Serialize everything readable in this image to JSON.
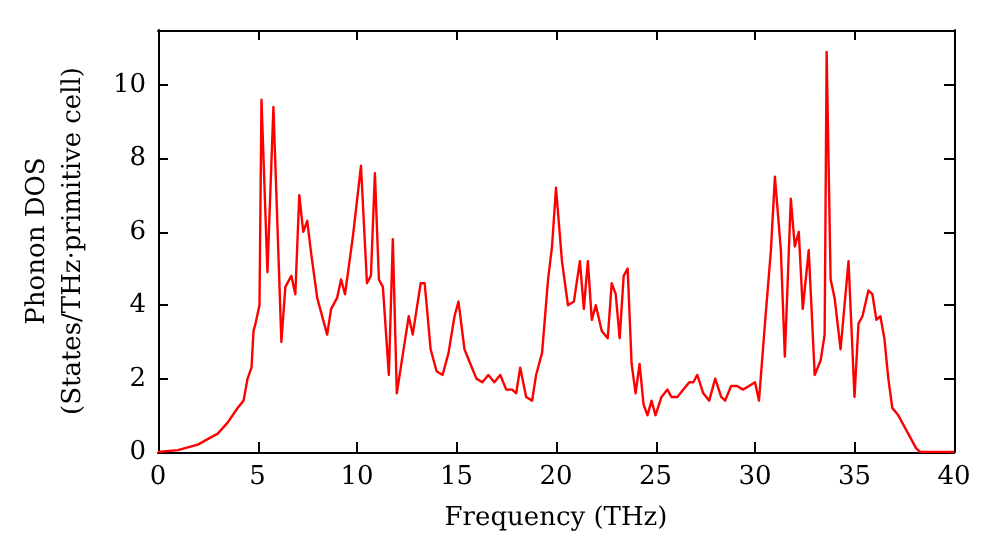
{
  "chart_data": {
    "type": "line",
    "xlabel": "Frequency (THz)",
    "ylabel": "Phonon DOS\n(States/THz·primitive cell)",
    "xlim": [
      0,
      40
    ],
    "xticks": [
      0,
      5,
      10,
      15,
      20,
      25,
      30,
      35,
      40
    ],
    "ylim": [
      0,
      11.5
    ],
    "yticks": [
      0,
      2,
      4,
      6,
      8,
      10
    ],
    "grid": false,
    "marker": "none",
    "line_style": "solid",
    "series": [
      {
        "color": "#ff0000",
        "x": [
          0,
          1,
          2,
          3,
          3.5,
          4,
          4.3,
          4.5,
          4.7,
          4.8,
          4.9,
          5.1,
          5.2,
          5.5,
          5.8,
          6.2,
          6.4,
          6.7,
          6.9,
          7.1,
          7.3,
          7.5,
          7.7,
          8.0,
          8.3,
          8.5,
          8.7,
          9.0,
          9.2,
          9.4,
          9.8,
          10.2,
          10.5,
          10.7,
          10.9,
          11.1,
          11.3,
          11.6,
          11.8,
          12.0,
          12.4,
          12.6,
          12.8,
          13.2,
          13.4,
          13.7,
          14.0,
          14.3,
          14.6,
          14.9,
          15.1,
          15.4,
          15.7,
          16.0,
          16.3,
          16.6,
          16.9,
          17.2,
          17.5,
          17.8,
          18.0,
          18.2,
          18.5,
          18.8,
          19.0,
          19.3,
          19.6,
          19.8,
          20.0,
          20.3,
          20.6,
          20.9,
          21.2,
          21.4,
          21.6,
          21.8,
          22.0,
          22.3,
          22.6,
          22.8,
          23.0,
          23.2,
          23.4,
          23.6,
          23.8,
          24.0,
          24.2,
          24.4,
          24.6,
          24.8,
          25.0,
          25.3,
          25.6,
          25.8,
          26.1,
          26.4,
          26.7,
          26.9,
          27.1,
          27.4,
          27.7,
          28.0,
          28.3,
          28.5,
          28.8,
          29.1,
          29.4,
          29.7,
          30.0,
          30.2,
          30.5,
          30.8,
          31.0,
          31.3,
          31.5,
          31.8,
          32.0,
          32.2,
          32.4,
          32.7,
          33.0,
          33.3,
          33.5,
          33.6,
          33.8,
          34.0,
          34.3,
          34.7,
          35.0,
          35.2,
          35.4,
          35.7,
          35.9,
          36.1,
          36.3,
          36.5,
          36.7,
          36.9,
          37.2,
          37.5,
          37.8,
          38.1,
          38.3,
          40
        ],
        "values": [
          0,
          0.05,
          0.2,
          0.5,
          0.8,
          1.2,
          1.4,
          2.0,
          2.3,
          3.3,
          3.5,
          4.0,
          9.6,
          4.9,
          9.4,
          3.0,
          4.5,
          4.8,
          4.3,
          7.0,
          6.0,
          6.3,
          5.4,
          4.2,
          3.6,
          3.2,
          3.9,
          4.2,
          4.7,
          4.3,
          5.9,
          7.8,
          4.6,
          4.8,
          7.6,
          4.7,
          4.5,
          2.1,
          5.8,
          1.6,
          3.0,
          3.7,
          3.2,
          4.6,
          4.6,
          2.8,
          2.2,
          2.1,
          2.7,
          3.7,
          4.1,
          2.8,
          2.4,
          2.0,
          1.9,
          2.1,
          1.9,
          2.1,
          1.7,
          1.7,
          1.6,
          2.3,
          1.5,
          1.4,
          2.1,
          2.7,
          4.7,
          5.6,
          7.2,
          5.2,
          4.0,
          4.1,
          5.2,
          3.9,
          5.2,
          3.6,
          4.0,
          3.3,
          3.1,
          4.6,
          4.3,
          3.1,
          4.8,
          5.0,
          2.4,
          1.6,
          2.4,
          1.3,
          1.0,
          1.4,
          1.0,
          1.5,
          1.7,
          1.5,
          1.5,
          1.7,
          1.9,
          1.9,
          2.1,
          1.6,
          1.4,
          2.0,
          1.5,
          1.4,
          1.8,
          1.8,
          1.7,
          1.8,
          1.9,
          1.4,
          3.5,
          5.5,
          7.5,
          5.5,
          2.6,
          6.9,
          5.6,
          6.0,
          3.9,
          5.5,
          2.1,
          2.5,
          3.2,
          10.9,
          4.7,
          4.2,
          2.8,
          5.2,
          1.5,
          3.5,
          3.7,
          4.4,
          4.3,
          3.6,
          3.7,
          3.1,
          2.0,
          1.2,
          1.0,
          0.7,
          0.4,
          0.1,
          0,
          0
        ]
      }
    ]
  }
}
